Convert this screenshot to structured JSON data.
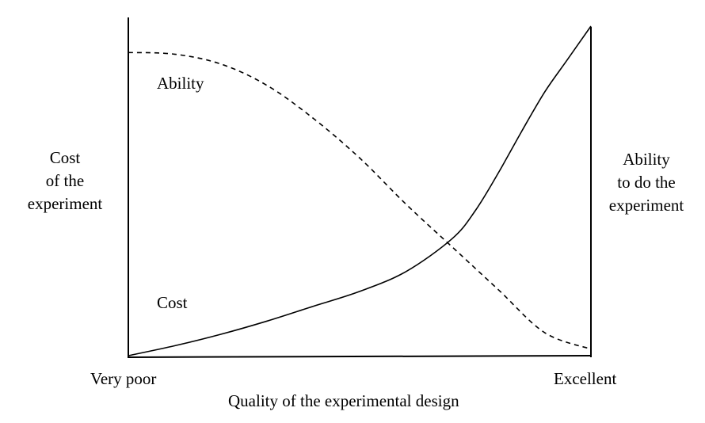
{
  "chart_data": {
    "type": "line",
    "xlabel": "Quality of the experimental design",
    "x_tick_labels": [
      "Very poor",
      "Excellent"
    ],
    "x_range": [
      0,
      1
    ],
    "y_range": [
      0,
      1
    ],
    "left_axis_label": [
      "Cost",
      "of the",
      "experiment"
    ],
    "right_axis_label": [
      "Ability",
      "to do the",
      "experiment"
    ],
    "grid": false,
    "ticks_shown": false,
    "series": [
      {
        "name": "Ability",
        "style": "dashed",
        "color": "#000000",
        "x": [
          0,
          0.1,
          0.2,
          0.3,
          0.4,
          0.5,
          0.6,
          0.7,
          0.8,
          0.9,
          1.0
        ],
        "y": [
          0.92,
          0.915,
          0.885,
          0.82,
          0.72,
          0.6,
          0.46,
          0.33,
          0.2,
          0.07,
          0.02
        ]
      },
      {
        "name": "Cost",
        "style": "solid",
        "color": "#000000",
        "x": [
          0,
          0.1,
          0.2,
          0.3,
          0.4,
          0.5,
          0.6,
          0.7,
          0.75,
          0.8,
          0.85,
          0.9,
          0.95,
          1.0
        ],
        "y": [
          0.0,
          0.03,
          0.065,
          0.105,
          0.15,
          0.195,
          0.255,
          0.355,
          0.44,
          0.555,
          0.68,
          0.8,
          0.9,
          1.0
        ]
      }
    ]
  }
}
